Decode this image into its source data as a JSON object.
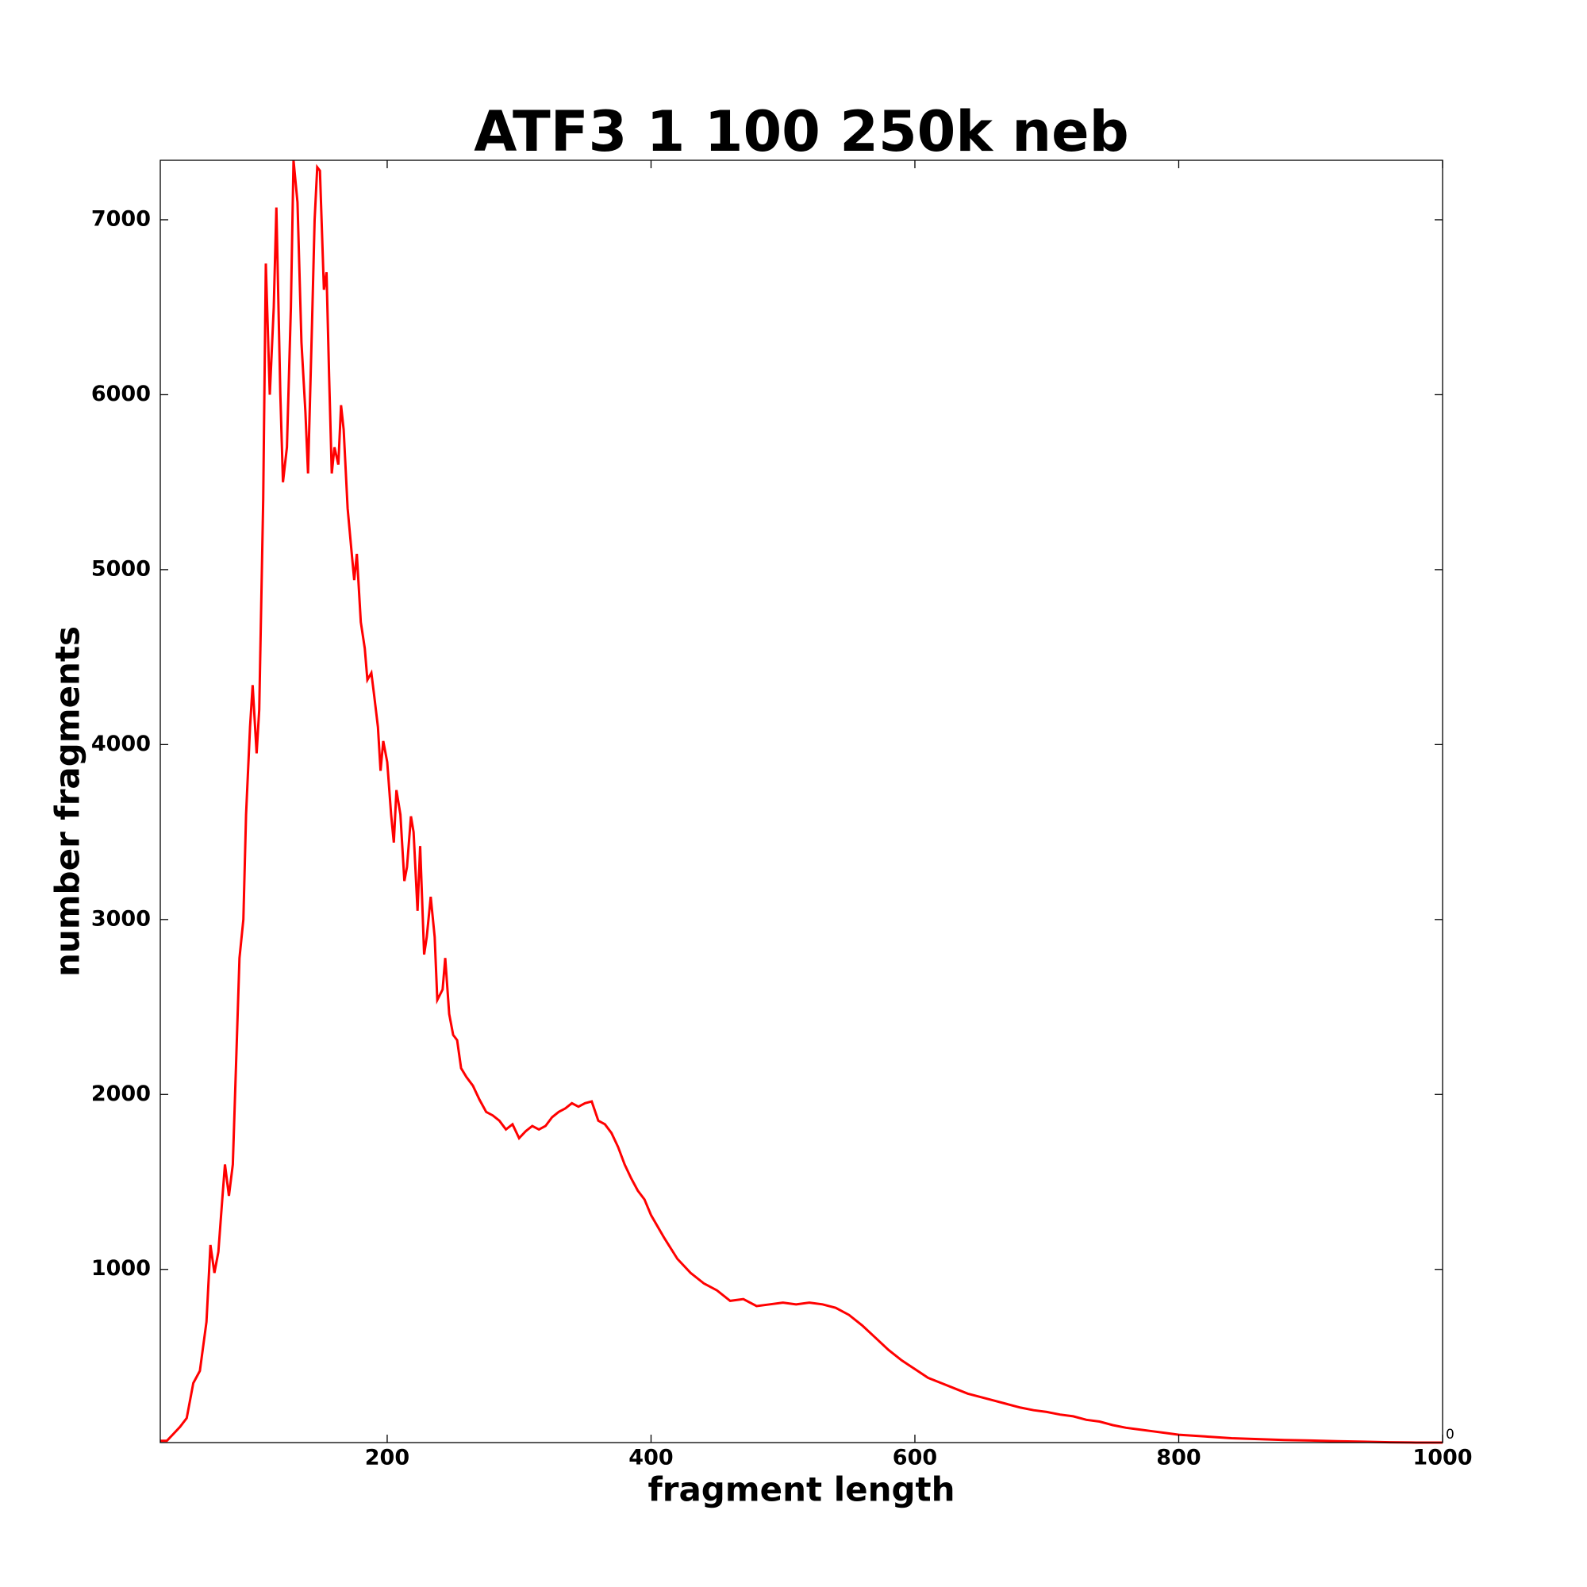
{
  "chart_data": {
    "type": "line",
    "title": "ATF3 1 100 250k neb",
    "xlabel": "fragment length",
    "ylabel": "number fragments",
    "annotation": "0",
    "x": [
      28,
      33,
      38,
      43,
      48,
      53,
      58,
      63,
      66,
      69,
      72,
      75,
      77,
      80,
      83,
      86,
      88,
      91,
      93,
      96,
      98,
      101,
      103,
      106,
      108,
      111,
      114,
      116,
      119,
      121,
      124,
      127,
      129,
      132,
      135,
      138,
      140,
      143,
      145,
      147,
      149,
      152,
      154,
      156,
      158,
      160,
      163,
      165,
      167,
      170,
      173,
      175,
      177,
      180,
      183,
      185,
      188,
      190,
      193,
      195,
      197,
      200,
      203,
      205,
      207,
      210,
      213,
      215,
      218,
      220,
      223,
      225,
      228,
      230,
      233,
      236,
      238,
      242,
      244,
      247,
      250,
      253,
      256,
      260,
      265,
      270,
      275,
      280,
      285,
      290,
      295,
      300,
      305,
      310,
      315,
      320,
      325,
      330,
      335,
      340,
      345,
      350,
      355,
      360,
      365,
      370,
      375,
      380,
      385,
      390,
      395,
      400,
      410,
      420,
      430,
      440,
      450,
      460,
      470,
      480,
      490,
      500,
      510,
      520,
      530,
      540,
      550,
      560,
      570,
      580,
      590,
      600,
      610,
      620,
      630,
      640,
      650,
      660,
      670,
      680,
      690,
      700,
      710,
      720,
      730,
      740,
      750,
      760,
      770,
      780,
      790,
      800,
      820,
      840,
      860,
      880,
      900,
      920,
      940,
      960,
      980,
      1000
    ],
    "series": [
      {
        "name": "fragments",
        "color": "#ff0000",
        "values": [
          20,
          20,
          60,
          100,
          150,
          350,
          420,
          700,
          1140,
          980,
          1100,
          1400,
          1600,
          1420,
          1600,
          2300,
          2780,
          3000,
          3600,
          4100,
          4340,
          3950,
          4200,
          5400,
          6750,
          6000,
          6500,
          7070,
          6000,
          5500,
          5700,
          6500,
          7340,
          7100,
          6300,
          5900,
          5550,
          6400,
          7000,
          7300,
          7280,
          6600,
          6700,
          6100,
          5550,
          5700,
          5600,
          5940,
          5800,
          5350,
          5100,
          4940,
          5090,
          4700,
          4550,
          4370,
          4410,
          4290,
          4100,
          3850,
          4020,
          3900,
          3600,
          3440,
          3740,
          3600,
          3220,
          3300,
          3590,
          3500,
          3050,
          3420,
          2800,
          2900,
          3130,
          2900,
          2540,
          2600,
          2780,
          2460,
          2340,
          2310,
          2150,
          2100,
          2050,
          1970,
          1900,
          1880,
          1850,
          1800,
          1830,
          1750,
          1790,
          1820,
          1800,
          1820,
          1870,
          1900,
          1920,
          1950,
          1930,
          1950,
          1960,
          1850,
          1830,
          1780,
          1700,
          1600,
          1520,
          1450,
          1400,
          1310,
          1180,
          1060,
          980,
          920,
          880,
          820,
          830,
          790,
          800,
          810,
          800,
          810,
          800,
          780,
          740,
          680,
          610,
          540,
          480,
          430,
          380,
          350,
          320,
          290,
          270,
          250,
          230,
          210,
          195,
          185,
          170,
          160,
          140,
          130,
          110,
          95,
          85,
          75,
          65,
          55,
          45,
          35,
          30,
          25,
          22,
          18,
          15,
          12,
          10,
          10
        ]
      }
    ],
    "xlim": [
      28,
      1000
    ],
    "ylim": [
      10,
      7340
    ],
    "xticks": [
      200,
      400,
      600,
      800,
      1000
    ],
    "yticks": [
      1000,
      2000,
      3000,
      4000,
      5000,
      6000,
      7000
    ]
  }
}
